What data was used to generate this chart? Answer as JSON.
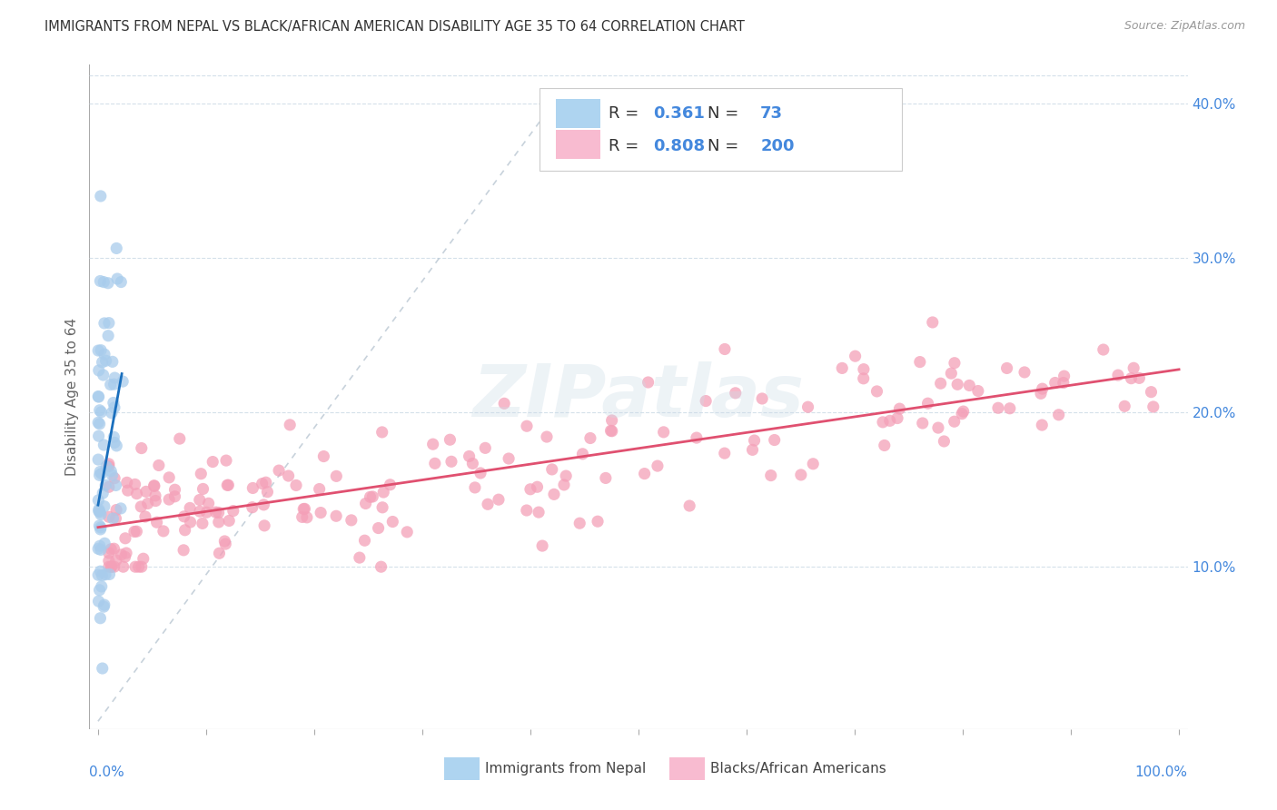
{
  "title": "IMMIGRANTS FROM NEPAL VS BLACK/AFRICAN AMERICAN DISABILITY AGE 35 TO 64 CORRELATION CHART",
  "source": "Source: ZipAtlas.com",
  "ylabel": "Disability Age 35 to 64",
  "legend_label1": "Immigrants from Nepal",
  "legend_label2": "Blacks/African Americans",
  "R1": "0.361",
  "N1": "73",
  "R2": "0.808",
  "N2": "200",
  "color_blue_scatter": "#a8ccec",
  "color_pink_scatter": "#f4a0b8",
  "color_blue_line": "#1a6fbd",
  "color_pink_line": "#e05070",
  "color_diag": "#b0bfcc",
  "color_legend_blue": "#aed4f0",
  "color_legend_pink": "#f8bbd0",
  "color_rtick": "#4488dd",
  "color_xtick": "#4488dd",
  "color_grid": "#d0dde8",
  "watermark_color": "#ccdde8",
  "background_color": "#ffffff",
  "title_color": "#333333",
  "source_color": "#999999",
  "ylabel_color": "#666666"
}
